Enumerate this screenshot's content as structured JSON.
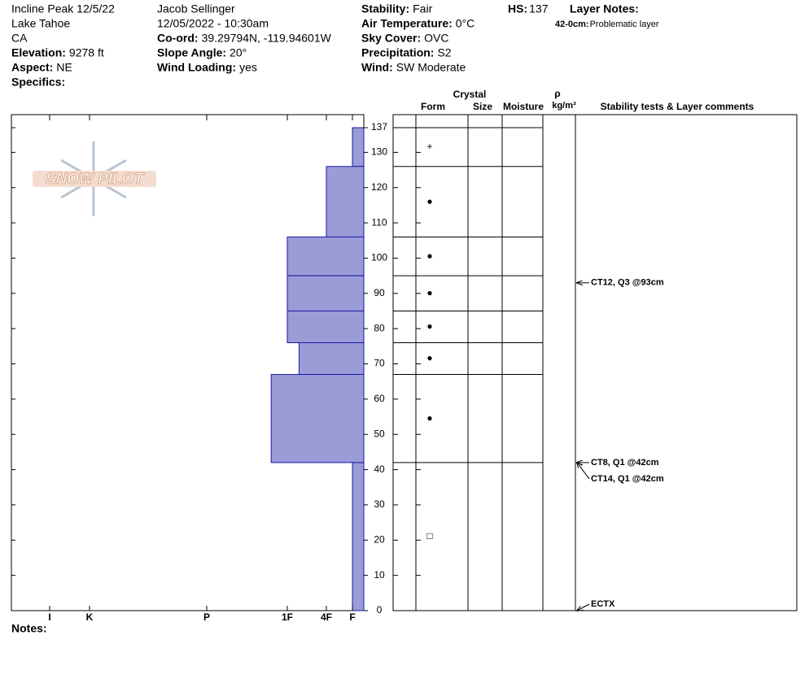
{
  "header": {
    "columns": [
      [
        {
          "value": "Incline Peak 12/5/22"
        },
        {
          "value": "Lake Tahoe"
        },
        {
          "value": "CA"
        },
        {
          "label": "Elevation:",
          "value": "9278 ft"
        },
        {
          "label": "Aspect:",
          "value": "NE"
        },
        {
          "label": "Specifics:"
        }
      ],
      [
        {
          "value": "Jacob Sellinger"
        },
        {
          "value": "12/05/2022 - 10:30am"
        },
        {
          "label": "Co-ord:",
          "value": "39.29794N, -119.94601W"
        },
        {
          "label": "Slope Angle:",
          "value": "20°"
        },
        {
          "label": "Wind Loading:",
          "value": "yes"
        }
      ],
      [
        {
          "label": "Stability:",
          "value": "Fair"
        },
        {
          "label": "Air Temperature:",
          "value": "0°C"
        },
        {
          "label": "Sky Cover:",
          "value": "OVC"
        },
        {
          "label": "Precipitation:",
          "value": "S2"
        },
        {
          "label": "Wind:",
          "value": " SW Moderate"
        }
      ]
    ],
    "hs": {
      "label": "HS:",
      "value": 137
    },
    "layer_notes": {
      "title": "Layer Notes:",
      "items": [
        {
          "range": "42-0cm:",
          "text": "Problematic layer"
        }
      ]
    }
  },
  "logo": "SNOW PILOT",
  "notes_label": "Notes:",
  "chart_data": {
    "type": "snow-profile",
    "ylim": [
      0,
      140.7
    ],
    "yticks": [
      0,
      10,
      20,
      30,
      40,
      50,
      60,
      70,
      80,
      90,
      100,
      110,
      120,
      130,
      137
    ],
    "xticks": [
      {
        "value": 6,
        "label": "I"
      },
      {
        "value": 5,
        "label": "K"
      },
      {
        "value": 4,
        "label": "P"
      },
      {
        "value": 3,
        "label": "1F"
      },
      {
        "value": 2,
        "label": "4F"
      },
      {
        "value": 1,
        "label": "F"
      }
    ],
    "column_group": "Crystal",
    "columns": [
      "Form",
      "Size",
      "Moisture"
    ],
    "density_symbol": "ρ",
    "density_unit": "kg/m³",
    "comments_header": "Stability tests & Layer comments",
    "bar_color": "#9b9bd8",
    "layers": [
      {
        "top": 137,
        "bottom": 126,
        "hardness": 1,
        "form": "+"
      },
      {
        "top": 126,
        "bottom": 106,
        "hardness": 2,
        "form": "●"
      },
      {
        "top": 106,
        "bottom": 95,
        "hardness": 3,
        "form": "●"
      },
      {
        "top": 95,
        "bottom": 85,
        "hardness": 3,
        "form": "●"
      },
      {
        "top": 85,
        "bottom": 76,
        "hardness": 3,
        "form": "●"
      },
      {
        "top": 76,
        "bottom": 67,
        "hardness": 2.7,
        "form": "●"
      },
      {
        "top": 67,
        "bottom": 42,
        "hardness": 3.2,
        "form": "●"
      },
      {
        "top": 42,
        "bottom": 0,
        "hardness": 1,
        "form": "□"
      }
    ],
    "tests": [
      {
        "label": "CT12, Q3 @93cm",
        "depth": 93
      },
      {
        "label": "CT8, Q1 @42cm",
        "depth": 42
      },
      {
        "label": "CT14, Q1 @42cm",
        "depth": 42
      },
      {
        "label": "ECTX",
        "depth": 0
      }
    ]
  }
}
